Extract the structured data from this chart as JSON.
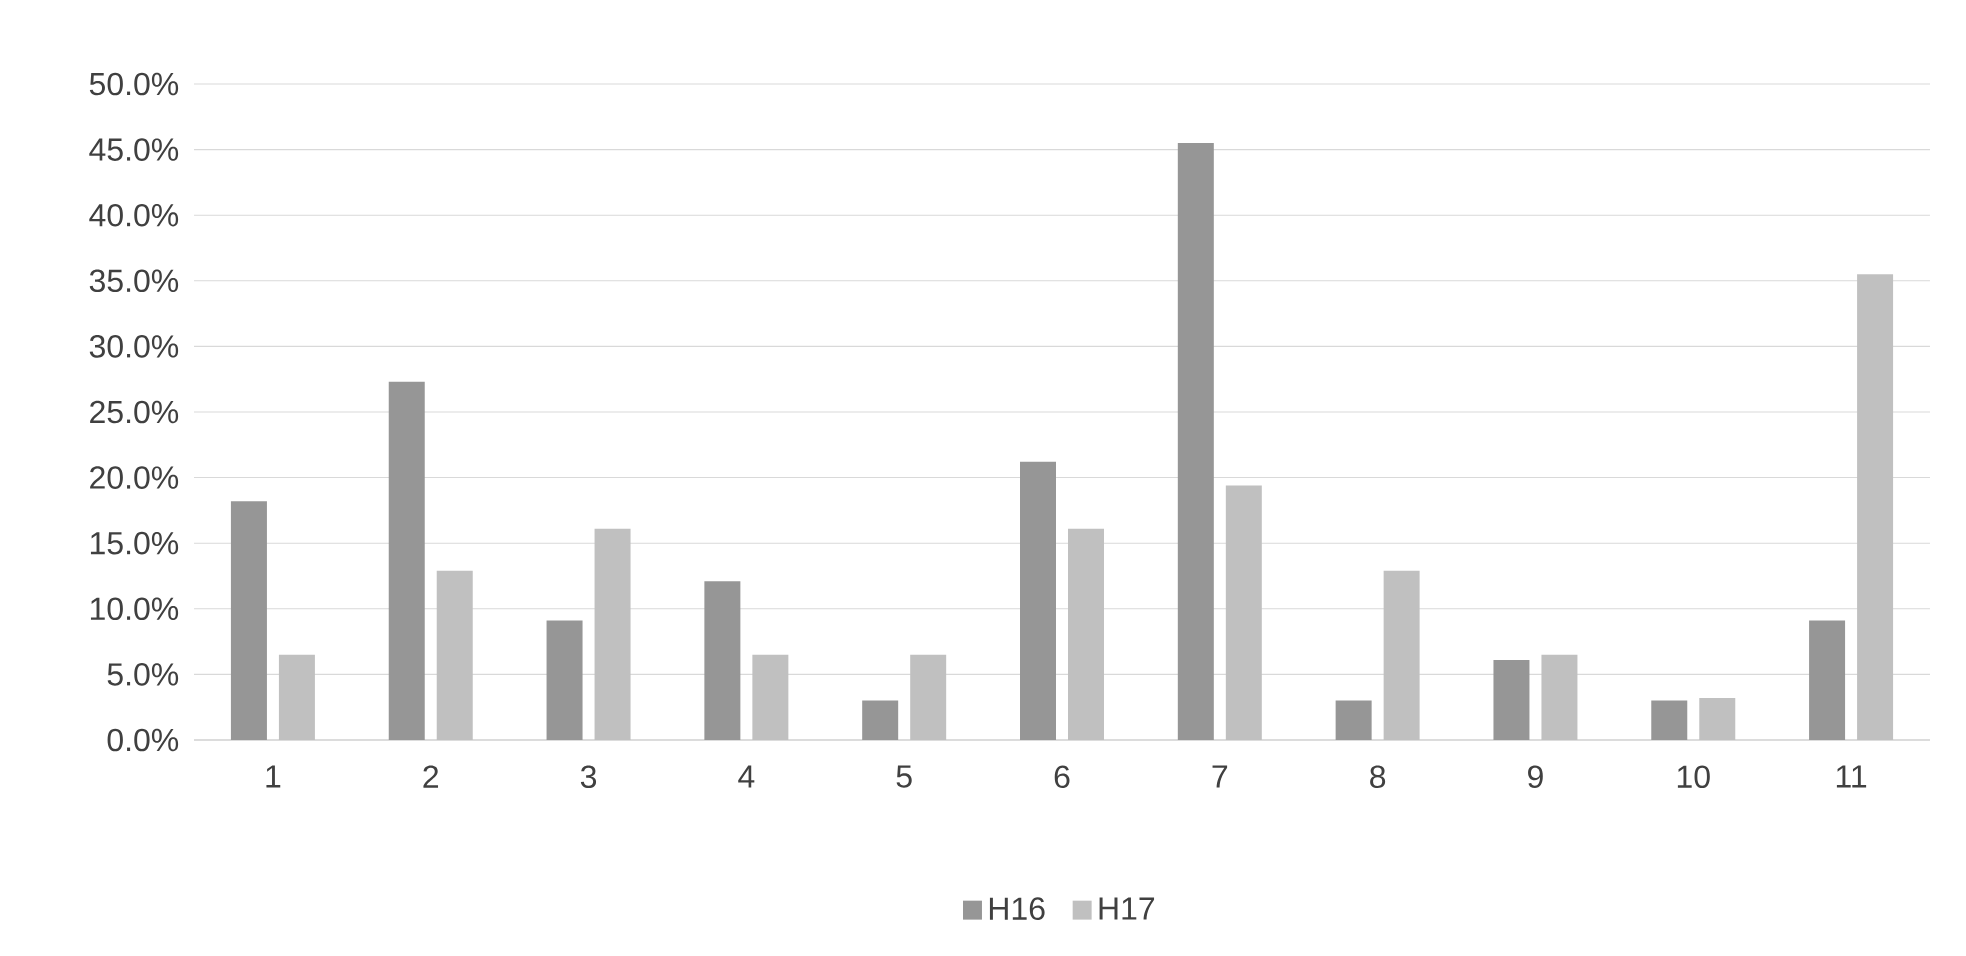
{
  "chart_data": {
    "type": "bar",
    "categories": [
      "1",
      "2",
      "3",
      "4",
      "5",
      "6",
      "7",
      "8",
      "9",
      "10",
      "11"
    ],
    "series": [
      {
        "name": "H16",
        "color": "#969696",
        "values": [
          18.2,
          27.3,
          9.1,
          12.1,
          3.0,
          21.2,
          45.5,
          3.0,
          6.1,
          3.0,
          9.1
        ]
      },
      {
        "name": "H17",
        "color": "#c0c0c0",
        "values": [
          6.5,
          12.9,
          16.1,
          6.5,
          6.5,
          16.1,
          19.4,
          12.9,
          6.5,
          3.2,
          35.5
        ]
      }
    ],
    "ylim": [
      0,
      50
    ],
    "yticks": [
      {
        "value": 0,
        "label": "0.0%"
      },
      {
        "value": 5,
        "label": "5.0%"
      },
      {
        "value": 10,
        "label": "10.0%"
      },
      {
        "value": 15,
        "label": "15.0%"
      },
      {
        "value": 20,
        "label": "20.0%"
      },
      {
        "value": 25,
        "label": "25.0%"
      },
      {
        "value": 30,
        "label": "30.0%"
      },
      {
        "value": 35,
        "label": "35.0%"
      },
      {
        "value": 40,
        "label": "40.0%"
      },
      {
        "value": 45,
        "label": "45.0%"
      },
      {
        "value": 50,
        "label": "50.0%"
      }
    ],
    "grid": "y",
    "legend": "bottom"
  }
}
